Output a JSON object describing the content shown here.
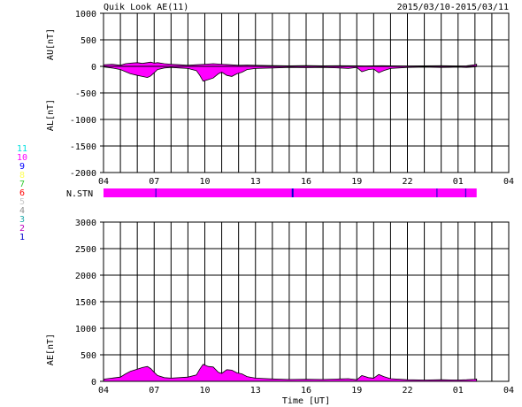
{
  "header": {
    "title": "Quik Look AE(11)",
    "date_range": "2015/03/10-2015/03/11"
  },
  "colors": {
    "fill": "#ff00ff",
    "axis": "#000000",
    "stn_marker": "#0000cc"
  },
  "station_legend": [
    {
      "label": "11",
      "color": "#00e0e0"
    },
    {
      "label": "10",
      "color": "#ff00ff"
    },
    {
      "label": "9",
      "color": "#0000ff"
    },
    {
      "label": "8",
      "color": "#ffff55"
    },
    {
      "label": "7",
      "color": "#33cc33"
    },
    {
      "label": "6",
      "color": "#ff0000"
    },
    {
      "label": "5",
      "color": "#c8c8c8"
    },
    {
      "label": "4",
      "color": "#909090"
    },
    {
      "label": "3",
      "color": "#22aaaa"
    },
    {
      "label": "2",
      "color": "#bb00bb"
    },
    {
      "label": "1",
      "color": "#0000cc"
    }
  ],
  "stn_bar": {
    "label": "N.STN",
    "x_end": 26.1,
    "markers": [
      7.1,
      15.2,
      23.75,
      25.45
    ]
  },
  "chart_data": [
    {
      "type": "area",
      "name": "AU/AL",
      "ylabel_top": "AU[nT]",
      "ylabel_bottom": "AL[nT]",
      "ylim": [
        -2000,
        1000
      ],
      "yticks": [
        "1000",
        "500",
        "0",
        "-500",
        "-1000",
        "-1500",
        "-2000"
      ],
      "xlim": [
        4,
        28
      ],
      "xticks": [
        "04",
        "07",
        "10",
        "13",
        "16",
        "19",
        "22",
        "01",
        "04"
      ],
      "grid": true,
      "au": {
        "x": [
          4.0,
          4.5,
          5.0,
          5.3,
          5.6,
          6.0,
          6.3,
          6.6,
          6.8,
          7.0,
          7.2,
          7.6,
          8.0,
          8.5,
          9.0,
          9.5,
          10.0,
          10.5,
          11.0,
          11.5,
          12.0,
          12.5,
          13.0,
          14.0,
          15.0,
          16.0,
          17.0,
          18.0,
          19.0,
          19.5,
          20.0,
          20.5,
          21.0,
          22.0,
          23.0,
          24.0,
          25.0,
          25.5,
          26.0,
          26.1
        ],
        "values": [
          30,
          40,
          20,
          50,
          60,
          70,
          55,
          70,
          80,
          60,
          70,
          50,
          40,
          30,
          20,
          30,
          40,
          50,
          40,
          30,
          20,
          25,
          20,
          15,
          10,
          15,
          10,
          12,
          10,
          8,
          10,
          12,
          10,
          8,
          10,
          12,
          8,
          10,
          30,
          40
        ]
      },
      "al": {
        "x": [
          4.0,
          4.5,
          5.0,
          5.3,
          5.6,
          6.0,
          6.3,
          6.6,
          6.8,
          7.0,
          7.2,
          7.6,
          8.0,
          8.5,
          9.0,
          9.5,
          9.7,
          9.9,
          10.2,
          10.5,
          10.8,
          11.0,
          11.3,
          11.6,
          11.9,
          12.2,
          12.5,
          13.0,
          14.0,
          15.0,
          16.0,
          17.0,
          18.0,
          18.5,
          19.0,
          19.3,
          19.7,
          20.0,
          20.3,
          20.6,
          21.0,
          22.0,
          23.0,
          24.0,
          25.0,
          25.5,
          26.0,
          26.1
        ],
        "values": [
          -10,
          -30,
          -60,
          -100,
          -140,
          -170,
          -190,
          -210,
          -180,
          -120,
          -60,
          -30,
          -20,
          -30,
          -40,
          -80,
          -170,
          -280,
          -250,
          -220,
          -140,
          -110,
          -170,
          -190,
          -140,
          -110,
          -60,
          -40,
          -30,
          -20,
          -25,
          -20,
          -30,
          -40,
          -20,
          -100,
          -60,
          -50,
          -120,
          -80,
          -40,
          -20,
          -15,
          -20,
          -15,
          -20,
          -10,
          -5
        ]
      }
    },
    {
      "type": "area",
      "name": "AE",
      "ylabel": "AE[nT]",
      "xlabel": "Time [UT]",
      "ylim": [
        0,
        3000
      ],
      "yticks": [
        "3000",
        "2500",
        "2000",
        "1500",
        "1000",
        "500",
        "0"
      ],
      "xlim": [
        4,
        28
      ],
      "xticks": [
        "04",
        "07",
        "10",
        "13",
        "16",
        "19",
        "22",
        "01",
        "04"
      ],
      "grid": true,
      "ae": {
        "x": [
          4.0,
          4.5,
          5.0,
          5.3,
          5.6,
          6.0,
          6.3,
          6.6,
          6.8,
          7.0,
          7.2,
          7.6,
          8.0,
          8.5,
          9.0,
          9.5,
          9.7,
          9.9,
          10.2,
          10.5,
          10.8,
          11.0,
          11.3,
          11.6,
          11.9,
          12.2,
          12.5,
          13.0,
          14.0,
          15.0,
          16.0,
          17.0,
          18.0,
          18.5,
          19.0,
          19.3,
          19.7,
          20.0,
          20.3,
          20.6,
          21.0,
          22.0,
          23.0,
          24.0,
          25.0,
          25.5,
          26.0,
          26.1
        ],
        "values": [
          40,
          60,
          80,
          140,
          190,
          230,
          260,
          280,
          240,
          170,
          110,
          70,
          60,
          70,
          80,
          120,
          230,
          320,
          280,
          270,
          170,
          150,
          220,
          210,
          160,
          140,
          90,
          60,
          45,
          35,
          40,
          35,
          45,
          50,
          30,
          110,
          70,
          60,
          130,
          90,
          50,
          30,
          25,
          30,
          25,
          30,
          40,
          45
        ]
      }
    }
  ]
}
